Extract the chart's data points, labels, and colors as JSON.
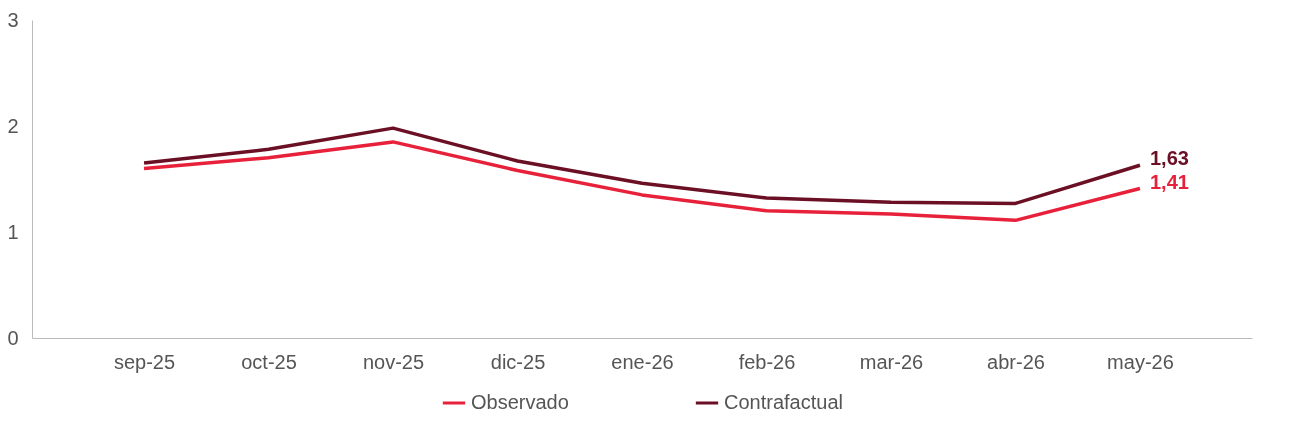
{
  "chart_data": {
    "type": "line",
    "categories": [
      "sep-25",
      "oct-25",
      "nov-25",
      "dic-25",
      "ene-26",
      "feb-26",
      "mar-26",
      "abr-26",
      "may-26"
    ],
    "series": [
      {
        "name": "Observado",
        "color": "#e8213a",
        "values": [
          1.6,
          1.7,
          1.85,
          1.58,
          1.35,
          1.2,
          1.17,
          1.11,
          1.41
        ],
        "value_labels": [
          null,
          null,
          null,
          null,
          null,
          null,
          null,
          null,
          "1,41"
        ]
      },
      {
        "name": "Contrafactual",
        "color": "#6b0f24",
        "values": [
          1.65,
          1.78,
          1.98,
          1.67,
          1.46,
          1.32,
          1.28,
          1.27,
          1.63
        ],
        "value_labels": [
          null,
          null,
          null,
          null,
          null,
          null,
          null,
          null,
          "1,63"
        ]
      }
    ],
    "ylim": [
      0,
      3
    ],
    "yticks": [
      0,
      1,
      2,
      3
    ],
    "grid": false,
    "legend": "bottom",
    "marker": "none",
    "line_style": "solid"
  }
}
